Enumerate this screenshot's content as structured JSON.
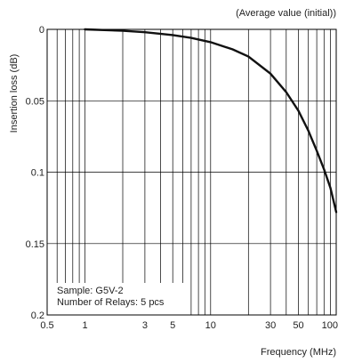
{
  "chart_data": {
    "type": "line",
    "subtitle": "(Average value (initial))",
    "xlabel": "Frequency (MHz)",
    "ylabel": "Insertion loss (dB)",
    "x_scale": "log",
    "y_inverted": true,
    "xlim": [
      0.5,
      100
    ],
    "ylim": [
      0,
      0.2
    ],
    "x_major_ticks": [
      0.5,
      1,
      3,
      5,
      10,
      30,
      50,
      100
    ],
    "x_tick_labels": [
      "0.5",
      "1",
      "3",
      "5",
      "10",
      "30",
      "50",
      "100"
    ],
    "x_minor_gridlines": [
      0.6,
      0.7,
      0.8,
      0.9,
      2,
      3,
      4,
      5,
      6,
      7,
      8,
      9,
      20,
      30,
      40,
      50,
      60,
      70,
      80,
      90
    ],
    "y_ticks": [
      0,
      0.05,
      0.1,
      0.15,
      0.2
    ],
    "y_tick_labels": [
      "0",
      "0.05",
      "0.1",
      "0.15",
      "0.2"
    ],
    "grid": true,
    "series": [
      {
        "x": [
          1,
          2,
          3,
          5,
          7,
          10,
          15,
          20,
          30,
          40,
          50,
          60,
          70,
          80,
          90,
          100
        ],
        "values": [
          0.0,
          0.001,
          0.002,
          0.004,
          0.006,
          0.009,
          0.014,
          0.019,
          0.031,
          0.044,
          0.057,
          0.071,
          0.085,
          0.098,
          0.111,
          0.128
        ]
      }
    ],
    "annotation": {
      "line1": "Sample: G5V-2",
      "line2": "Number of Relays: 5 pcs"
    }
  }
}
